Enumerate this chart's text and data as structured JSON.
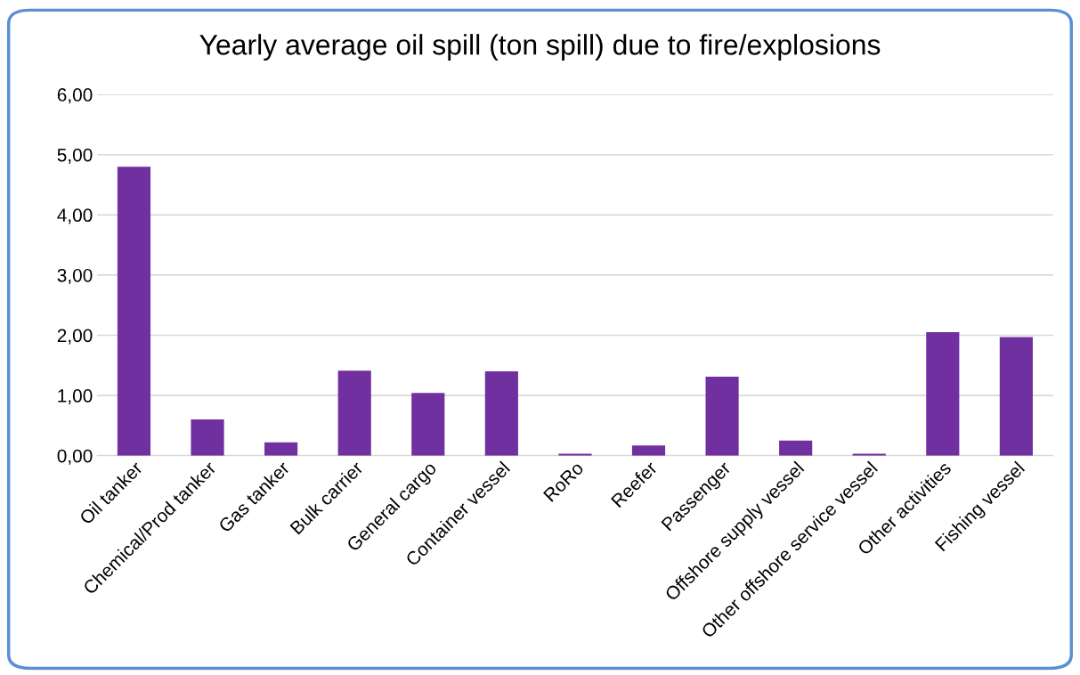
{
  "chart_data": {
    "type": "bar",
    "title": "Yearly average oil spill (ton spill) due to fire/explosions",
    "categories": [
      "Oil tanker",
      "Chemical/Prod tanker",
      "Gas tanker",
      "Bulk carrier",
      "General cargo",
      "Container vessel",
      "RoRo",
      "Reefer",
      "Passenger",
      "Offshore supply vessel",
      "Other offshore service vessel",
      "Other activities",
      "Fishing vessel"
    ],
    "values": [
      4.8,
      0.6,
      0.22,
      1.41,
      1.04,
      1.4,
      0.03,
      0.17,
      1.31,
      0.25,
      0.03,
      2.05,
      1.97
    ],
    "color": "#7030a0",
    "ylim": [
      0,
      6
    ],
    "yticks": [
      {
        "value": 0,
        "label": "0,00"
      },
      {
        "value": 1,
        "label": "1,00"
      },
      {
        "value": 2,
        "label": "2,00"
      },
      {
        "value": 3,
        "label": "3,00"
      },
      {
        "value": 4,
        "label": "4,00"
      },
      {
        "value": 5,
        "label": "5,00"
      },
      {
        "value": 6,
        "label": "6,00"
      }
    ],
    "grid": "y",
    "legend": false
  }
}
